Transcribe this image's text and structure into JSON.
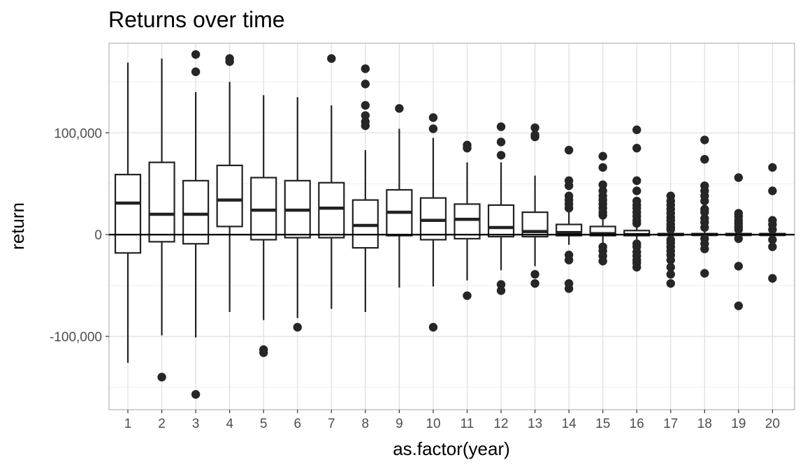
{
  "chart_data": {
    "type": "boxplot",
    "title": "Returns over time",
    "xlabel": "as.factor(year)",
    "ylabel": "return",
    "ylim": [
      -172000,
      188000
    ],
    "y_ticks": [
      -100000,
      0,
      100000
    ],
    "y_tick_labels": [
      "-100,000",
      "0",
      "100,000"
    ],
    "categories": [
      "1",
      "2",
      "3",
      "4",
      "5",
      "6",
      "7",
      "8",
      "9",
      "10",
      "11",
      "12",
      "13",
      "14",
      "15",
      "16",
      "17",
      "18",
      "19",
      "20"
    ],
    "reference_line_y": 0,
    "grid": true,
    "boxes": [
      {
        "category": "1",
        "whisker_low": -126000,
        "q1": -18000,
        "median": 31000,
        "q3": 59000,
        "whisker_high": 169000,
        "outliers": []
      },
      {
        "category": "2",
        "whisker_low": -99000,
        "q1": -7000,
        "median": 20000,
        "q3": 71000,
        "whisker_high": 173000,
        "outliers": [
          -140000
        ]
      },
      {
        "category": "3",
        "whisker_low": -101000,
        "q1": -9000,
        "median": 20000,
        "q3": 53000,
        "whisker_high": 140000,
        "outliers": [
          177000,
          160000,
          -157000
        ]
      },
      {
        "category": "4",
        "whisker_low": -76000,
        "q1": 8000,
        "median": 34000,
        "q3": 68000,
        "whisker_high": 150000,
        "outliers": [
          173000,
          170000
        ]
      },
      {
        "category": "5",
        "whisker_low": -84000,
        "q1": -5000,
        "median": 24000,
        "q3": 56000,
        "whisker_high": 137000,
        "outliers": [
          -113000,
          -116000
        ]
      },
      {
        "category": "6",
        "whisker_low": -82000,
        "q1": -3000,
        "median": 24000,
        "q3": 53000,
        "whisker_high": 135000,
        "outliers": [
          -91000
        ]
      },
      {
        "category": "7",
        "whisker_low": -73000,
        "q1": -3000,
        "median": 26000,
        "q3": 51000,
        "whisker_high": 127000,
        "outliers": [
          173000
        ]
      },
      {
        "category": "8",
        "whisker_low": -76000,
        "q1": -13000,
        "median": 9000,
        "q3": 34000,
        "whisker_high": 83000,
        "outliers": [
          163000,
          148000,
          127000,
          117000,
          111000,
          107000
        ]
      },
      {
        "category": "9",
        "whisker_low": -52000,
        "q1": -1000,
        "median": 22000,
        "q3": 44000,
        "whisker_high": 104000,
        "outliers": [
          124000
        ]
      },
      {
        "category": "10",
        "whisker_low": -51000,
        "q1": -5000,
        "median": 14000,
        "q3": 36000,
        "whisker_high": 95000,
        "outliers": [
          115000,
          104000,
          -91000
        ]
      },
      {
        "category": "11",
        "whisker_low": -45000,
        "q1": -4000,
        "median": 15000,
        "q3": 30000,
        "whisker_high": 71000,
        "outliers": [
          88000,
          85000,
          -60000
        ]
      },
      {
        "category": "12",
        "whisker_low": -35000,
        "q1": -2000,
        "median": 7000,
        "q3": 29000,
        "whisker_high": 71000,
        "outliers": [
          106000,
          91000,
          78000,
          -49000,
          -55000
        ]
      },
      {
        "category": "13",
        "whisker_low": -31000,
        "q1": -2000,
        "median": 3000,
        "q3": 22000,
        "whisker_high": 58000,
        "outliers": [
          105000,
          98000,
          96000,
          -39000,
          -48000
        ]
      },
      {
        "category": "14",
        "whisker_low": -10000,
        "q1": -1000,
        "median": 2000,
        "q3": 10000,
        "whisker_high": 22000,
        "outliers": [
          83000,
          53000,
          48000,
          38000,
          34000,
          30000,
          26000,
          -20000,
          -25000,
          -48000,
          -53000
        ]
      },
      {
        "category": "15",
        "whisker_low": -9000,
        "q1": -1000,
        "median": 1000,
        "q3": 8000,
        "whisker_high": 17000,
        "outliers": [
          77000,
          66000,
          49000,
          43000,
          38000,
          34000,
          30000,
          26000,
          22000,
          19000,
          -12000,
          -16000,
          -21000,
          -26000
        ]
      },
      {
        "category": "16",
        "whisker_low": -5000,
        "q1": -1000,
        "median": 0,
        "q3": 4000,
        "whisker_high": 9000,
        "outliers": [
          103000,
          85000,
          53000,
          43000,
          33000,
          29000,
          26000,
          22000,
          18000,
          14000,
          11000,
          -9000,
          -12000,
          -17000,
          -21000,
          -25000,
          -28000,
          -32000
        ]
      },
      {
        "category": "17",
        "whisker_low": -2000,
        "q1": -500,
        "median": 0,
        "q3": 1000,
        "whisker_high": 3000,
        "outliers": [
          38000,
          33000,
          29000,
          25000,
          21000,
          17000,
          14000,
          10000,
          7000,
          5000,
          -5000,
          -8000,
          -12000,
          -16000,
          -20000,
          -25000,
          -32000,
          -39000,
          -48000
        ]
      },
      {
        "category": "18",
        "whisker_low": -2000,
        "q1": -500,
        "median": 0,
        "q3": 1000,
        "whisker_high": 3000,
        "outliers": [
          93000,
          74000,
          48000,
          43000,
          38000,
          33000,
          25000,
          22000,
          16000,
          12000,
          7000,
          -4000,
          -9000,
          -14000,
          -38000
        ]
      },
      {
        "category": "19",
        "whisker_low": -2000,
        "q1": -500,
        "median": 0,
        "q3": 1000,
        "whisker_high": 2000,
        "outliers": [
          56000,
          21000,
          18000,
          14000,
          11000,
          8000,
          5000,
          -4000,
          -31000,
          -70000
        ]
      },
      {
        "category": "20",
        "whisker_low": -2000,
        "q1": -500,
        "median": 0,
        "q3": 1000,
        "whisker_high": 2000,
        "outliers": [
          66000,
          43000,
          14000,
          10000,
          5000,
          -5000,
          -12000,
          -43000
        ]
      }
    ],
    "colors": {
      "box_fill": "#ffffff",
      "box_stroke": "#222222",
      "outlier": "#262626",
      "grid_major": "#dedede",
      "grid_minor": "#efefef",
      "panel_border": "#b3b3b3",
      "reference_line": "#000000"
    }
  }
}
